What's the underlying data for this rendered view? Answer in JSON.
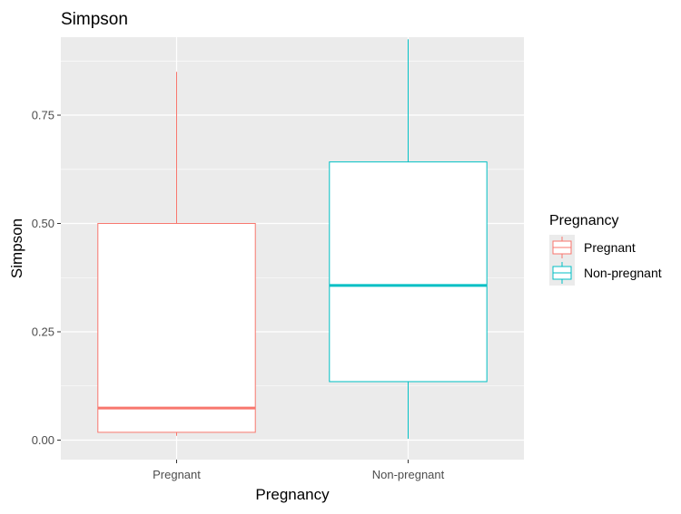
{
  "chart_data": {
    "type": "boxplot",
    "title": "Simpson",
    "xlabel": "Pregnancy",
    "ylabel": "Simpson",
    "categories": [
      "Pregnant",
      "Non-pregnant"
    ],
    "ylim": [
      -0.045,
      0.93
    ],
    "yticks": [
      0.0,
      0.25,
      0.5,
      0.75
    ],
    "ytick_labels": [
      "0.00",
      "0.25",
      "0.50",
      "0.75"
    ],
    "grid": true,
    "legend": {
      "title": "Pregnancy",
      "position": "right",
      "entries": [
        "Pregnant",
        "Non-pregnant"
      ]
    },
    "series": [
      {
        "name": "Pregnant",
        "color": "#F8766D",
        "min": 0.01,
        "q1": 0.018,
        "median": 0.074,
        "q3": 0.5,
        "max": 0.85
      },
      {
        "name": "Non-pregnant",
        "color": "#00BFC4",
        "min": 0.003,
        "q1": 0.135,
        "median": 0.357,
        "q3": 0.642,
        "max": 0.925
      }
    ]
  },
  "colors": {
    "panel_background": "#EBEBEB",
    "grid_major": "#FFFFFF",
    "text": "#000000",
    "tick_text": "#4D4D4D"
  }
}
